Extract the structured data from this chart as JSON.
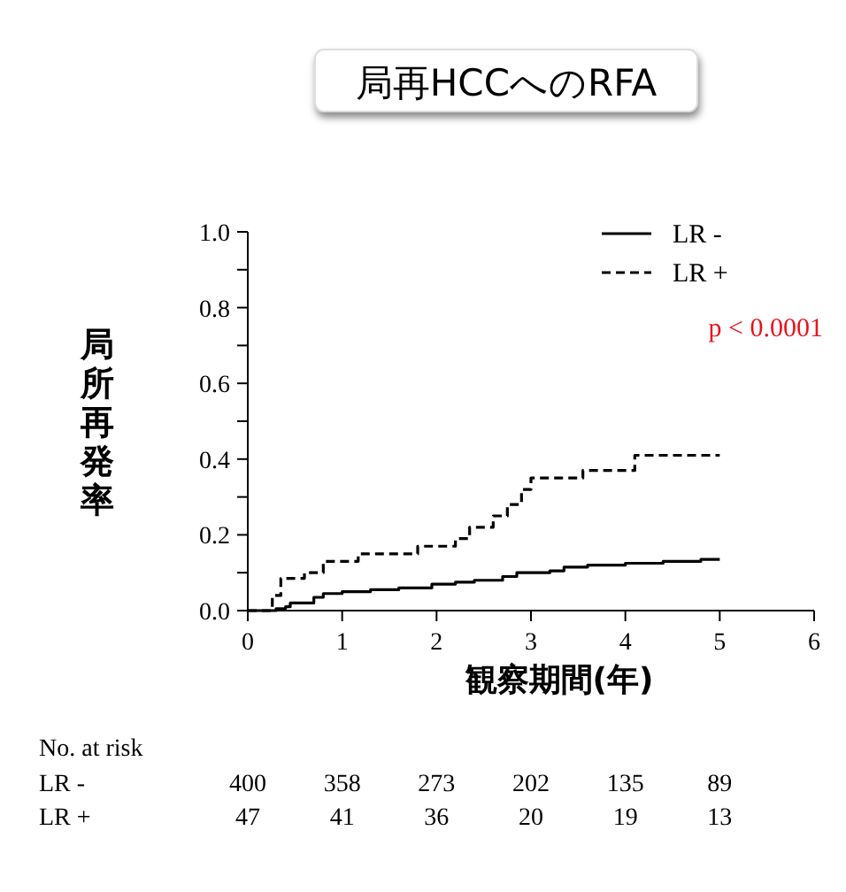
{
  "chart_data": {
    "type": "step",
    "title": "局再HCCへのRFA",
    "xlabel": "観察期間(年)",
    "ylabel": "局所再発率",
    "xlim": [
      0,
      6
    ],
    "xticks": [
      0,
      1,
      2,
      3,
      4,
      5,
      6
    ],
    "ylim": [
      0,
      1
    ],
    "yticks": [
      {
        "value": 0,
        "label": "0.0"
      },
      {
        "value": 0.1,
        "label": null
      },
      {
        "value": 0.2,
        "label": "0.2"
      },
      {
        "value": 0.3,
        "label": null
      },
      {
        "value": 0.4,
        "label": "0.4"
      },
      {
        "value": 0.5,
        "label": null
      },
      {
        "value": 0.6,
        "label": "0.6"
      },
      {
        "value": 0.7,
        "label": null
      },
      {
        "value": 0.8,
        "label": "0.8"
      },
      {
        "value": 0.9,
        "label": null
      },
      {
        "value": 1,
        "label": "1.0"
      }
    ],
    "grid": false,
    "legend": "top right",
    "series": [
      {
        "name": "LR -",
        "color": "#000000",
        "line_style": "solid",
        "x": [
          0,
          0.3,
          0.4,
          0.45,
          0.7,
          0.8,
          1.0,
          1.3,
          1.6,
          1.95,
          2.2,
          2.4,
          2.7,
          2.85,
          3.2,
          3.35,
          3.6,
          4.0,
          4.4,
          4.8,
          5.0
        ],
        "values": [
          0,
          0.005,
          0.01,
          0.02,
          0.035,
          0.045,
          0.05,
          0.055,
          0.06,
          0.07,
          0.075,
          0.08,
          0.09,
          0.1,
          0.105,
          0.115,
          0.12,
          0.125,
          0.13,
          0.135,
          0.135
        ]
      },
      {
        "name": "LR +",
        "color": "#000000",
        "line_style": "dashed",
        "x": [
          0,
          0.26,
          0.35,
          0.6,
          0.8,
          1.17,
          1.8,
          2.2,
          2.35,
          2.6,
          2.75,
          2.9,
          3.0,
          3.55,
          4.1,
          5.0
        ],
        "values": [
          0,
          0.04,
          0.085,
          0.1,
          0.13,
          0.15,
          0.17,
          0.19,
          0.22,
          0.25,
          0.28,
          0.32,
          0.35,
          0.37,
          0.41,
          0.41
        ]
      }
    ],
    "annotations": [
      "p < 0.0001",
      "No. at risk",
      "LR -",
      "400",
      "358",
      "273",
      "202",
      "135",
      "89",
      "LR +",
      "47",
      "41",
      "36",
      "20",
      "19",
      "13"
    ]
  }
}
